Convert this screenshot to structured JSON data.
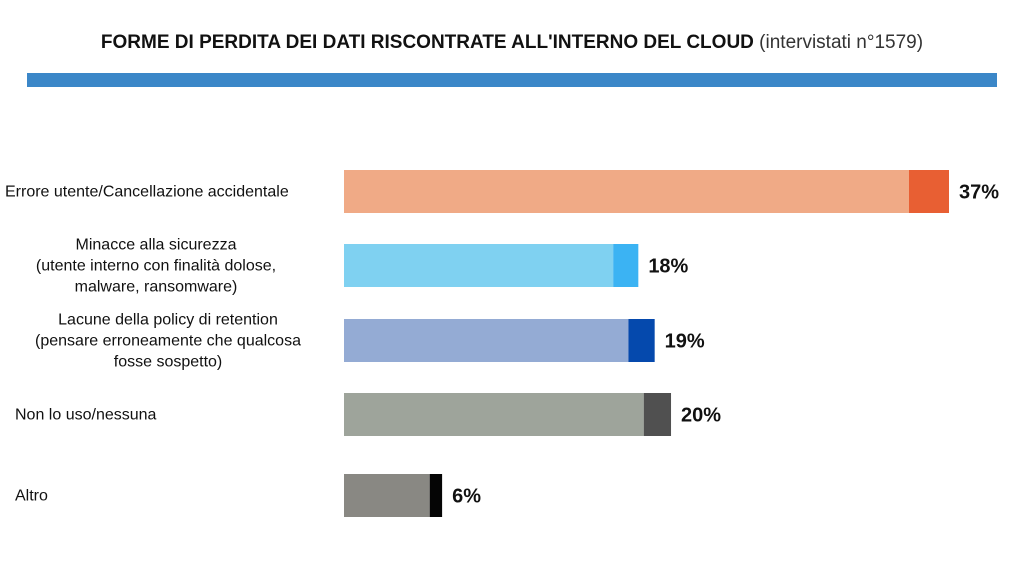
{
  "header": {
    "title": "FORME DI PERDITA DEI DATI RISCONTRATE ALL'INTERNO DEL CLOUD",
    "subtitle": "(intervistati n°1579)",
    "rule_color": "#3b87c8"
  },
  "chart_data": {
    "type": "bar",
    "orientation": "horizontal",
    "title": "FORME DI PERDITA DEI DATI RISCONTRATE ALL'INTERNO DEL CLOUD",
    "subtitle": "(intervistati n°1579)",
    "categories": [
      [
        "Errore utente/Cancellazione accidentale"
      ],
      [
        "Minacce alla sicurezza",
        "(utente interno con finalità dolose,",
        "malware, ransomware)"
      ],
      [
        "Lacune della policy di retention",
        "(pensare erroneamente che qualcosa",
        "fosse sospetto)"
      ],
      [
        "Non lo uso/nessuna"
      ],
      [
        "Altro"
      ]
    ],
    "values": [
      37,
      18,
      19,
      20,
      6
    ],
    "value_labels": [
      "37%",
      "18%",
      "19%",
      "20%",
      "6%"
    ],
    "colors": [
      {
        "main": "#f0aa86",
        "accent": "#e85f33"
      },
      {
        "main": "#7fd1f1",
        "accent": "#3bb3f3"
      },
      {
        "main": "#94abd4",
        "accent": "#0549ad"
      },
      {
        "main": "#9ea49b",
        "accent": "#505050"
      },
      {
        "main": "#898883",
        "accent": "#050505"
      }
    ],
    "xlim": [
      0,
      37
    ],
    "grid": false,
    "legend": "none"
  }
}
